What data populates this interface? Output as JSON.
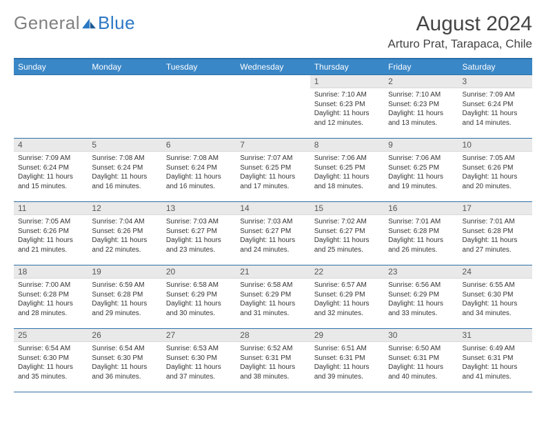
{
  "brand": {
    "part1": "General",
    "part2": "Blue"
  },
  "colors": {
    "header_bg": "#3a87c7",
    "header_border": "#2b6fa8",
    "daynum_bg": "#e9e9e9",
    "logo_gray": "#808080",
    "logo_blue": "#2b78c5",
    "text": "#333333"
  },
  "title": "August 2024",
  "subtitle": "Arturo Prat, Tarapaca, Chile",
  "weekdays": [
    "Sunday",
    "Monday",
    "Tuesday",
    "Wednesday",
    "Thursday",
    "Friday",
    "Saturday"
  ],
  "layout": {
    "first_weekday_index": 4,
    "days_in_month": 31
  },
  "days": {
    "1": {
      "sunrise": "7:10 AM",
      "sunset": "6:23 PM",
      "daylight": "11 hours and 12 minutes."
    },
    "2": {
      "sunrise": "7:10 AM",
      "sunset": "6:23 PM",
      "daylight": "11 hours and 13 minutes."
    },
    "3": {
      "sunrise": "7:09 AM",
      "sunset": "6:24 PM",
      "daylight": "11 hours and 14 minutes."
    },
    "4": {
      "sunrise": "7:09 AM",
      "sunset": "6:24 PM",
      "daylight": "11 hours and 15 minutes."
    },
    "5": {
      "sunrise": "7:08 AM",
      "sunset": "6:24 PM",
      "daylight": "11 hours and 16 minutes."
    },
    "6": {
      "sunrise": "7:08 AM",
      "sunset": "6:24 PM",
      "daylight": "11 hours and 16 minutes."
    },
    "7": {
      "sunrise": "7:07 AM",
      "sunset": "6:25 PM",
      "daylight": "11 hours and 17 minutes."
    },
    "8": {
      "sunrise": "7:06 AM",
      "sunset": "6:25 PM",
      "daylight": "11 hours and 18 minutes."
    },
    "9": {
      "sunrise": "7:06 AM",
      "sunset": "6:25 PM",
      "daylight": "11 hours and 19 minutes."
    },
    "10": {
      "sunrise": "7:05 AM",
      "sunset": "6:26 PM",
      "daylight": "11 hours and 20 minutes."
    },
    "11": {
      "sunrise": "7:05 AM",
      "sunset": "6:26 PM",
      "daylight": "11 hours and 21 minutes."
    },
    "12": {
      "sunrise": "7:04 AM",
      "sunset": "6:26 PM",
      "daylight": "11 hours and 22 minutes."
    },
    "13": {
      "sunrise": "7:03 AM",
      "sunset": "6:27 PM",
      "daylight": "11 hours and 23 minutes."
    },
    "14": {
      "sunrise": "7:03 AM",
      "sunset": "6:27 PM",
      "daylight": "11 hours and 24 minutes."
    },
    "15": {
      "sunrise": "7:02 AM",
      "sunset": "6:27 PM",
      "daylight": "11 hours and 25 minutes."
    },
    "16": {
      "sunrise": "7:01 AM",
      "sunset": "6:28 PM",
      "daylight": "11 hours and 26 minutes."
    },
    "17": {
      "sunrise": "7:01 AM",
      "sunset": "6:28 PM",
      "daylight": "11 hours and 27 minutes."
    },
    "18": {
      "sunrise": "7:00 AM",
      "sunset": "6:28 PM",
      "daylight": "11 hours and 28 minutes."
    },
    "19": {
      "sunrise": "6:59 AM",
      "sunset": "6:28 PM",
      "daylight": "11 hours and 29 minutes."
    },
    "20": {
      "sunrise": "6:58 AM",
      "sunset": "6:29 PM",
      "daylight": "11 hours and 30 minutes."
    },
    "21": {
      "sunrise": "6:58 AM",
      "sunset": "6:29 PM",
      "daylight": "11 hours and 31 minutes."
    },
    "22": {
      "sunrise": "6:57 AM",
      "sunset": "6:29 PM",
      "daylight": "11 hours and 32 minutes."
    },
    "23": {
      "sunrise": "6:56 AM",
      "sunset": "6:29 PM",
      "daylight": "11 hours and 33 minutes."
    },
    "24": {
      "sunrise": "6:55 AM",
      "sunset": "6:30 PM",
      "daylight": "11 hours and 34 minutes."
    },
    "25": {
      "sunrise": "6:54 AM",
      "sunset": "6:30 PM",
      "daylight": "11 hours and 35 minutes."
    },
    "26": {
      "sunrise": "6:54 AM",
      "sunset": "6:30 PM",
      "daylight": "11 hours and 36 minutes."
    },
    "27": {
      "sunrise": "6:53 AM",
      "sunset": "6:30 PM",
      "daylight": "11 hours and 37 minutes."
    },
    "28": {
      "sunrise": "6:52 AM",
      "sunset": "6:31 PM",
      "daylight": "11 hours and 38 minutes."
    },
    "29": {
      "sunrise": "6:51 AM",
      "sunset": "6:31 PM",
      "daylight": "11 hours and 39 minutes."
    },
    "30": {
      "sunrise": "6:50 AM",
      "sunset": "6:31 PM",
      "daylight": "11 hours and 40 minutes."
    },
    "31": {
      "sunrise": "6:49 AM",
      "sunset": "6:31 PM",
      "daylight": "11 hours and 41 minutes."
    }
  },
  "labels": {
    "sunrise": "Sunrise:",
    "sunset": "Sunset:",
    "daylight": "Daylight:"
  }
}
